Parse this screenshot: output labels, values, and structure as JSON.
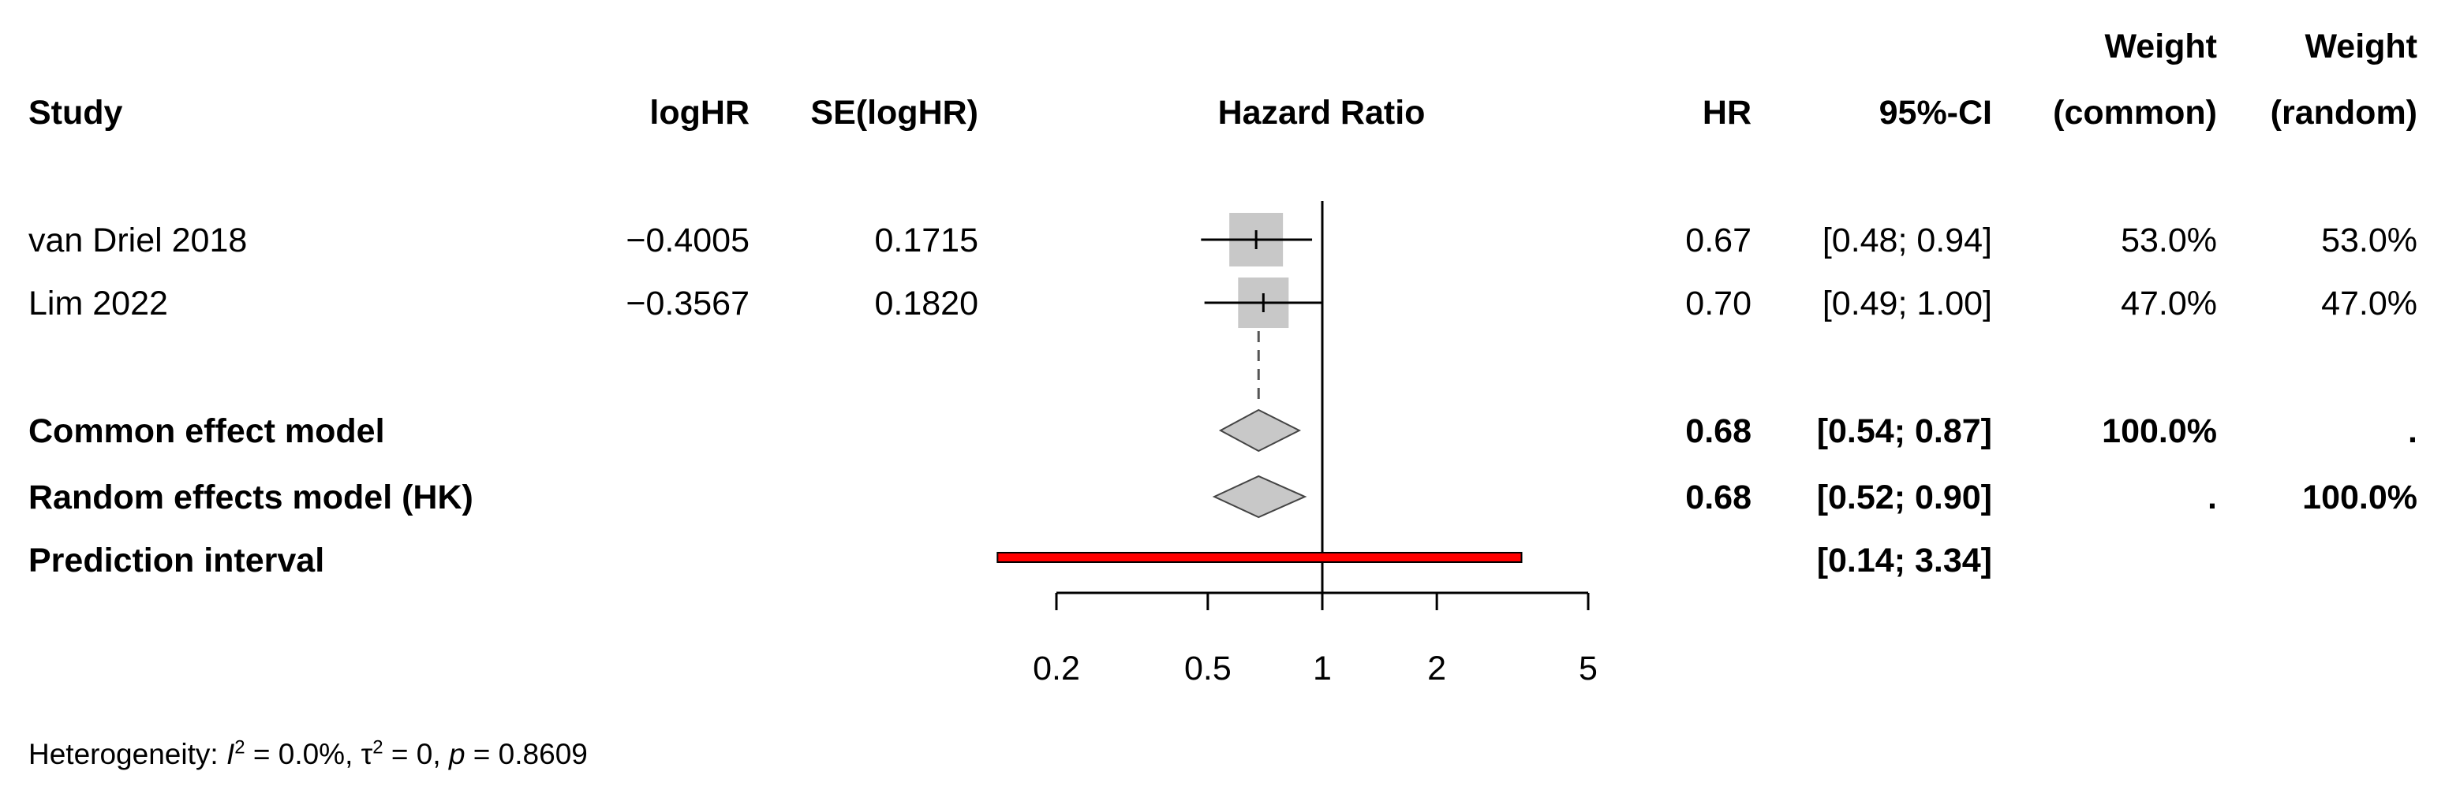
{
  "headers": {
    "study": "Study",
    "loghr": "logHR",
    "se": "SE(logHR)",
    "hazard_ratio": "Hazard Ratio",
    "hr": "HR",
    "ci": "95%-CI",
    "weight_common_1": "Weight",
    "weight_common_2": "(common)",
    "weight_random_1": "Weight",
    "weight_random_2": "(random)"
  },
  "studies": [
    {
      "name": "van Driel 2018",
      "loghr": "−0.4005",
      "se": "0.1715",
      "hr": "0.67",
      "ci": "[0.48; 0.94]",
      "w_common": "53.0%",
      "w_random": "53.0%"
    },
    {
      "name": "Lim 2022",
      "loghr": "−0.3567",
      "se": "0.1820",
      "hr": "0.70",
      "ci": "[0.49; 1.00]",
      "w_common": "47.0%",
      "w_random": "47.0%"
    }
  ],
  "summaries": [
    {
      "name": "Common effect model",
      "hr": "0.68",
      "ci": "[0.54; 0.87]",
      "w_common": "100.0%",
      "w_random": "."
    },
    {
      "name": "Random effects model (HK)",
      "hr": "0.68",
      "ci": "[0.52; 0.90]",
      "w_common": ".",
      "w_random": "100.0%"
    }
  ],
  "prediction": {
    "name": "Prediction interval",
    "ci": "[0.14; 3.34]"
  },
  "heterogeneity": {
    "prefix": "Heterogeneity: ",
    "i_symbol": "I",
    "i_sup": "2",
    "i_value": " = 0.0%, ",
    "tau_symbol": "τ",
    "tau_sup": "2",
    "tau_value": " = 0, ",
    "p_symbol": "p",
    "p_value": " = 0.8609"
  },
  "chart_data": {
    "type": "forest",
    "xlabel": "Hazard Ratio",
    "x_scale": "log",
    "xlim": [
      0.2,
      5
    ],
    "ticks": [
      0.2,
      0.5,
      1,
      2,
      5
    ],
    "tick_labels": [
      "0.2",
      "0.5",
      "1",
      "2",
      "5"
    ],
    "reference_line": 1,
    "studies": [
      {
        "name": "van Driel 2018",
        "hr": 0.67,
        "lower": 0.48,
        "upper": 0.94,
        "weight": 53.0
      },
      {
        "name": "Lim 2022",
        "hr": 0.7,
        "lower": 0.49,
        "upper": 1.0,
        "weight": 47.0
      }
    ],
    "summaries": [
      {
        "name": "Common effect model",
        "hr": 0.68,
        "lower": 0.54,
        "upper": 0.87
      },
      {
        "name": "Random effects model (HK)",
        "hr": 0.68,
        "lower": 0.52,
        "upper": 0.9
      }
    ],
    "prediction_interval": {
      "lower": 0.14,
      "upper": 3.34
    },
    "colors": {
      "box": "#c8c8c8",
      "diamond": "#c8c8c8",
      "prediction": "#ff0000",
      "line": "#000000"
    }
  }
}
